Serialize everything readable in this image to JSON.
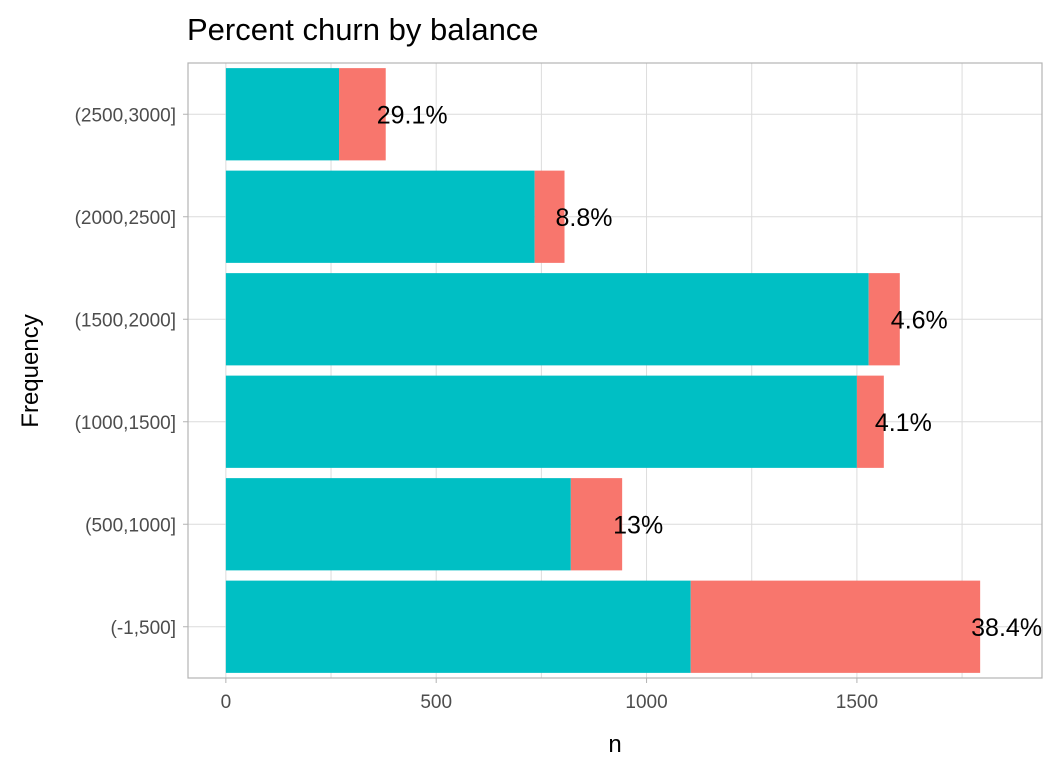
{
  "chart_data": {
    "type": "bar",
    "orientation": "horizontal",
    "stacked": true,
    "title": "Percent churn by balance",
    "xlabel": "n",
    "ylabel": "Frequency",
    "xlim": [
      -90,
      1940
    ],
    "xticks": [
      0,
      500,
      1000,
      1500
    ],
    "xtick_labels": [
      "0",
      "500",
      "1000",
      "1500"
    ],
    "categories": [
      "(-1,500]",
      "(500,1000]",
      "(1000,1500]",
      "(1500,2000]",
      "(2000,2500]",
      "(2500,3000]"
    ],
    "series": [
      {
        "values": [
          1105,
          820,
          1500,
          1528,
          734,
          269
        ],
        "color": "#00BFC4"
      },
      {
        "values": [
          688,
          122,
          64,
          74,
          71,
          111
        ],
        "color": "#F8766D"
      }
    ],
    "data_labels": [
      "38.4%",
      "13%",
      "4.1%",
      "4.6%",
      "8.8%",
      "29.1%"
    ],
    "grid": true,
    "legend": "none"
  }
}
